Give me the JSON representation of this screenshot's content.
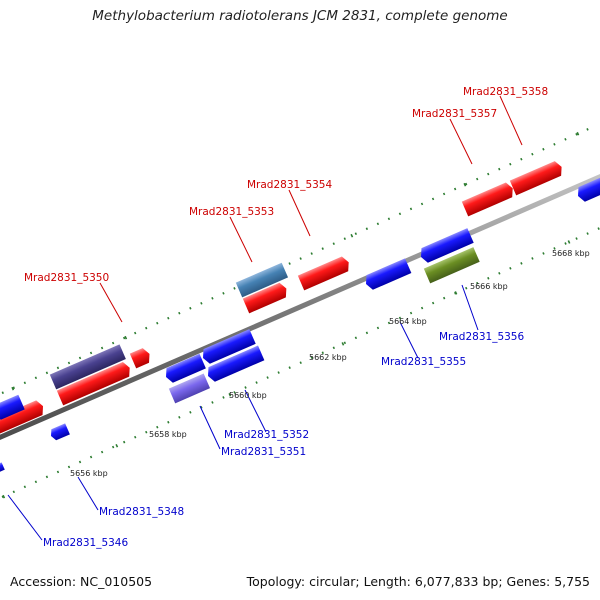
{
  "title": "Methylobacterium radiotolerans JCM 2831, complete genome",
  "footer": {
    "accession": "Accession: NC_010505",
    "summary": "Topology: circular; Length: 6,077,833 bp; Genes: 5,755"
  },
  "colors": {
    "forward": "#ff1a1a",
    "reverse": "#1a1aff",
    "forward_label": "#cc0000",
    "reverse_label": "#0000cc",
    "backbone": "#808080",
    "tick": "#2e7d32"
  },
  "scale_labels": [
    "5656 kbp",
    "5658 kbp",
    "5660 kbp",
    "5662 kbp",
    "5664 kbp",
    "5666 kbp",
    "5668 kbp"
  ],
  "gene_labels": {
    "forward": [
      "Mrad2831_5350",
      "Mrad2831_5353",
      "Mrad2831_5354",
      "Mrad2831_5357",
      "Mrad2831_5358"
    ],
    "reverse": [
      "Mrad2831_5346",
      "Mrad2831_5348",
      "Mrad2831_5351",
      "Mrad2831_5352",
      "Mrad2831_5355",
      "Mrad2831_5356"
    ]
  }
}
